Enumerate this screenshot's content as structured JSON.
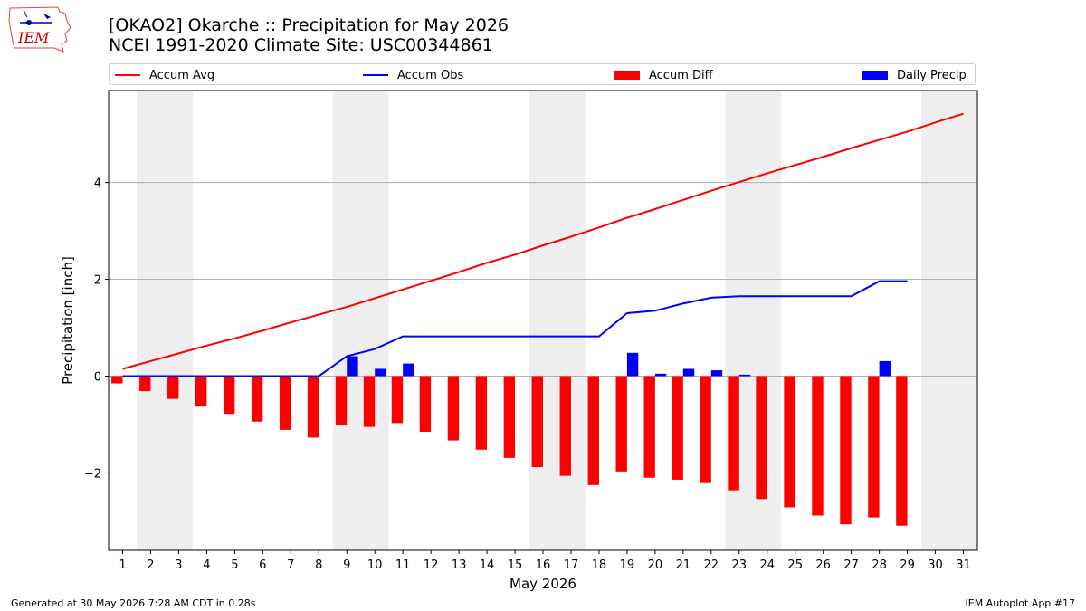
{
  "header": {
    "title_line1": "[OKAO2] Okarche :: Precipitation for May 2026",
    "title_line2": "NCEI 1991-2020 Climate Site: USC00344861"
  },
  "logo": {
    "text": "IEM",
    "icon": "iem-iowa-state-logo"
  },
  "legend": {
    "items": [
      {
        "label": "Accum Avg",
        "kind": "line",
        "color": "#ff0000"
      },
      {
        "label": "Accum Obs",
        "kind": "line",
        "color": "#0000ff"
      },
      {
        "label": "Accum Diff",
        "kind": "bar",
        "color": "#ff0000"
      },
      {
        "label": "Daily Precip",
        "kind": "bar",
        "color": "#0000ff"
      }
    ]
  },
  "footer": {
    "left": "Generated at 30 May 2026 7:28 AM CDT in 0.28s",
    "right": "IEM Autoplot App #17"
  },
  "chart_data": {
    "type": "bar",
    "title": "[OKAO2] Okarche :: Precipitation for May 2026",
    "subtitle": "NCEI 1991-2020 Climate Site: USC00344861",
    "xlabel": "May 2026",
    "ylabel": "Precipitation [inch]",
    "xlim": [
      0.5,
      31.5
    ],
    "ylim": [
      -3.6,
      5.9
    ],
    "yticks": [
      -2,
      0,
      2,
      4
    ],
    "ytick_labels": [
      "−2",
      "0",
      "2",
      "4"
    ],
    "x": [
      1,
      2,
      3,
      4,
      5,
      6,
      7,
      8,
      9,
      10,
      11,
      12,
      13,
      14,
      15,
      16,
      17,
      18,
      19,
      20,
      21,
      22,
      23,
      24,
      25,
      26,
      27,
      28,
      29,
      30,
      31
    ],
    "xtick_labels": [
      "1",
      "2",
      "3",
      "4",
      "5",
      "6",
      "7",
      "8",
      "9",
      "10",
      "11",
      "12",
      "13",
      "14",
      "15",
      "16",
      "17",
      "18",
      "19",
      "20",
      "21",
      "22",
      "23",
      "24",
      "25",
      "26",
      "27",
      "28",
      "29",
      "30",
      "31"
    ],
    "weekend_shading": [
      [
        1.5,
        3.5
      ],
      [
        8.5,
        10.5
      ],
      [
        15.5,
        17.5
      ],
      [
        22.5,
        24.5
      ],
      [
        29.5,
        31.5
      ]
    ],
    "grid": "horizontal",
    "series": [
      {
        "name": "Accum Avg",
        "kind": "line",
        "color": "#ff0000",
        "x": [
          1,
          2,
          3,
          4,
          5,
          6,
          7,
          8,
          9,
          10,
          11,
          12,
          13,
          14,
          15,
          16,
          17,
          18,
          19,
          20,
          21,
          22,
          23,
          24,
          25,
          26,
          27,
          28,
          29,
          30,
          31
        ],
        "values": [
          0.15,
          0.31,
          0.47,
          0.63,
          0.78,
          0.94,
          1.11,
          1.27,
          1.43,
          1.61,
          1.79,
          1.97,
          2.15,
          2.34,
          2.51,
          2.7,
          2.88,
          3.07,
          3.27,
          3.45,
          3.64,
          3.83,
          4.01,
          4.19,
          4.36,
          4.53,
          4.71,
          4.88,
          5.05,
          5.24,
          5.42
        ]
      },
      {
        "name": "Accum Obs",
        "kind": "line",
        "color": "#0000ff",
        "x": [
          1,
          2,
          3,
          4,
          5,
          6,
          7,
          8,
          9,
          10,
          11,
          12,
          13,
          14,
          15,
          16,
          17,
          18,
          19,
          20,
          21,
          22,
          23,
          24,
          25,
          26,
          27,
          28,
          29
        ],
        "values": [
          0,
          0,
          0,
          0,
          0,
          0,
          0,
          0,
          0.41,
          0.56,
          0.82,
          0.82,
          0.82,
          0.82,
          0.82,
          0.82,
          0.82,
          0.82,
          1.3,
          1.35,
          1.5,
          1.62,
          1.65,
          1.65,
          1.65,
          1.65,
          1.65,
          1.96,
          1.96
        ]
      },
      {
        "name": "Accum Diff",
        "kind": "bar",
        "color": "#ff0000",
        "x": [
          1,
          2,
          3,
          4,
          5,
          6,
          7,
          8,
          9,
          10,
          11,
          12,
          13,
          14,
          15,
          16,
          17,
          18,
          19,
          20,
          21,
          22,
          23,
          24,
          25,
          26,
          27,
          28,
          29
        ],
        "values": [
          -0.15,
          -0.31,
          -0.47,
          -0.63,
          -0.78,
          -0.94,
          -1.11,
          -1.27,
          -1.02,
          -1.05,
          -0.97,
          -1.15,
          -1.33,
          -1.52,
          -1.69,
          -1.88,
          -2.06,
          -2.25,
          -1.97,
          -2.1,
          -2.14,
          -2.21,
          -2.36,
          -2.54,
          -2.71,
          -2.88,
          -3.06,
          -2.92,
          -3.09
        ]
      },
      {
        "name": "Daily Precip",
        "kind": "bar",
        "color": "#0000ff",
        "x": [
          1,
          2,
          3,
          4,
          5,
          6,
          7,
          8,
          9,
          10,
          11,
          12,
          13,
          14,
          15,
          16,
          17,
          18,
          19,
          20,
          21,
          22,
          23,
          24,
          25,
          26,
          27,
          28,
          29
        ],
        "values": [
          0,
          0,
          0,
          0,
          0,
          0,
          0,
          0,
          0.41,
          0.15,
          0.26,
          0,
          0,
          0,
          0,
          0,
          0,
          0,
          0.48,
          0.05,
          0.15,
          0.12,
          0.03,
          0,
          0,
          0,
          0,
          0.31,
          0
        ]
      }
    ]
  }
}
